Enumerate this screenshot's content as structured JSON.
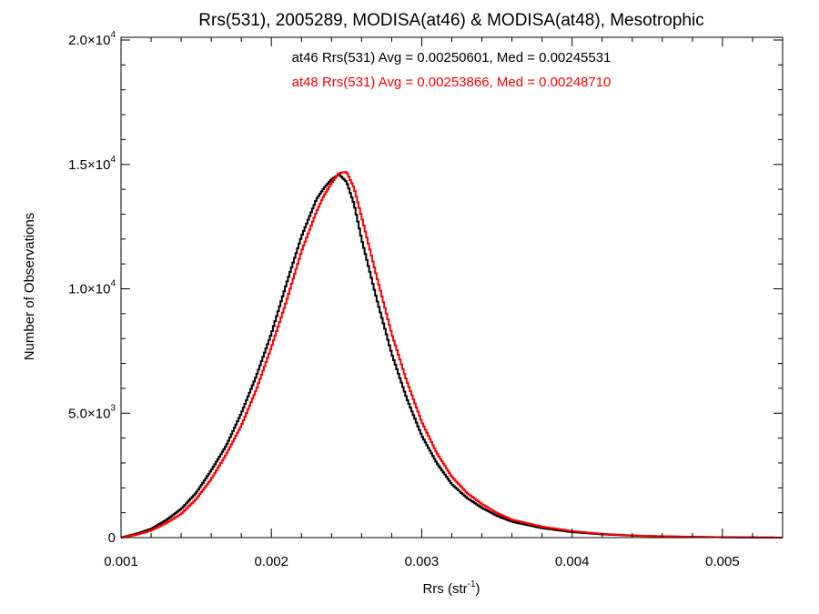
{
  "chart_data": {
    "type": "line",
    "title": "Rrs(531), 2005289, MODISA(at46) & MODISA(at48), Mesotrophic",
    "xlabel": "Rrs (str",
    "xlabel_sup": "-1",
    "xlabel_close": ")",
    "ylabel": "Number of Observations",
    "xlim": [
      0.001,
      0.0054
    ],
    "ylim": [
      0,
      20000
    ],
    "x_ticks": [
      {
        "value": 0.001,
        "label": "0.001"
      },
      {
        "value": 0.002,
        "label": "0.002"
      },
      {
        "value": 0.003,
        "label": "0.003"
      },
      {
        "value": 0.004,
        "label": "0.004"
      },
      {
        "value": 0.005,
        "label": "0.005"
      }
    ],
    "y_ticks": [
      {
        "value": 0,
        "mant": "0",
        "exp": ""
      },
      {
        "value": 5000,
        "mant": "5.0×10",
        "exp": "3"
      },
      {
        "value": 10000,
        "mant": "1.0×10",
        "exp": "4"
      },
      {
        "value": 15000,
        "mant": "1.5×10",
        "exp": "4"
      },
      {
        "value": 20000,
        "mant": "2.0×10",
        "exp": "4"
      }
    ],
    "x_minor_step": 0.0002,
    "y_minor_step": 1000,
    "grid": false,
    "legend_position": "top-center",
    "series": [
      {
        "name": "at46 Rrs(531) Avg = 0.00250601, Med = 0.00245531",
        "color": "#000000",
        "step": true,
        "x": [
          0.001,
          0.0011,
          0.0012,
          0.0013,
          0.0014,
          0.0015,
          0.0016,
          0.0017,
          0.0018,
          0.0019,
          0.002,
          0.0021,
          0.0022,
          0.0023,
          0.00235,
          0.0024,
          0.00245,
          0.0025,
          0.00255,
          0.0026,
          0.00265,
          0.0027,
          0.0028,
          0.0029,
          0.003,
          0.0031,
          0.0032,
          0.0033,
          0.0034,
          0.0035,
          0.0036,
          0.0038,
          0.004,
          0.0042,
          0.0044,
          0.0046,
          0.0048,
          0.005,
          0.0054
        ],
        "y": [
          0,
          150,
          350,
          700,
          1150,
          1800,
          2700,
          3700,
          5000,
          6500,
          8200,
          10200,
          12100,
          13600,
          14050,
          14400,
          14600,
          14300,
          13400,
          12000,
          10800,
          9600,
          7400,
          5600,
          4100,
          3000,
          2150,
          1600,
          1200,
          880,
          640,
          380,
          220,
          130,
          80,
          50,
          30,
          15,
          0
        ]
      },
      {
        "name": "at48 Rrs(531) Avg = 0.00253866, Med = 0.00248710",
        "color": "#ff0000",
        "step": true,
        "x": [
          0.001,
          0.0011,
          0.0012,
          0.0013,
          0.0014,
          0.0015,
          0.0016,
          0.0017,
          0.0018,
          0.0019,
          0.002,
          0.0021,
          0.0022,
          0.0023,
          0.00235,
          0.0024,
          0.00245,
          0.0025,
          0.00255,
          0.0026,
          0.00265,
          0.0027,
          0.0028,
          0.0029,
          0.003,
          0.0031,
          0.0032,
          0.0033,
          0.0034,
          0.0035,
          0.0036,
          0.0038,
          0.004,
          0.0042,
          0.0044,
          0.0046,
          0.0048,
          0.005,
          0.0054
        ],
        "y": [
          0,
          110,
          280,
          580,
          950,
          1550,
          2350,
          3350,
          4500,
          5950,
          7650,
          9500,
          11500,
          13100,
          13750,
          14250,
          14650,
          14700,
          14050,
          12900,
          11700,
          10500,
          8200,
          6300,
          4650,
          3400,
          2450,
          1800,
          1350,
          990,
          720,
          440,
          260,
          150,
          90,
          55,
          32,
          16,
          0
        ]
      }
    ]
  }
}
